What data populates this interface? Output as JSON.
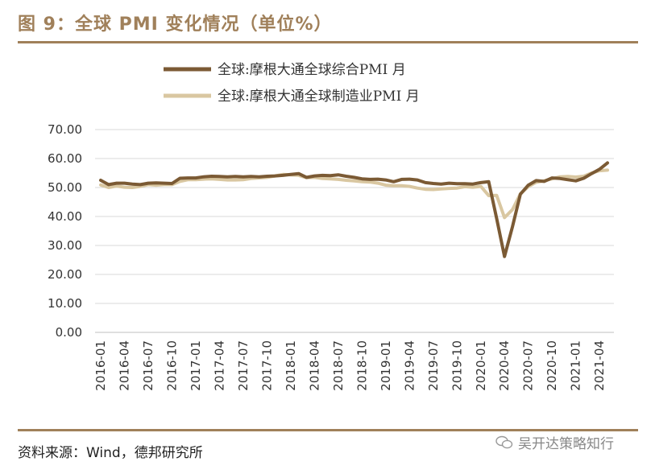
{
  "header": {
    "title": "图 9：全球 PMI 变化情况（单位%）"
  },
  "footer": {
    "source": "资料来源：Wind，德邦研究所",
    "watermark": "吴开达策略知行"
  },
  "colors": {
    "accent": "#a0805a",
    "series1": "#7b5a34",
    "series2": "#d9c7a1",
    "grid": "#d9d9d9"
  },
  "chart_data": {
    "type": "line",
    "legend_position": "top-center",
    "grid": true,
    "ylim": [
      0,
      70
    ],
    "yticks": [
      "0.00",
      "10.00",
      "20.00",
      "30.00",
      "40.00",
      "50.00",
      "60.00",
      "70.00"
    ],
    "xticks": [
      "2016-01",
      "2016-04",
      "2016-07",
      "2016-10",
      "2017-01",
      "2017-04",
      "2017-07",
      "2017-10",
      "2018-01",
      "2018-04",
      "2018-07",
      "2018-10",
      "2019-01",
      "2019-04",
      "2019-07",
      "2019-10",
      "2020-01",
      "2020-04",
      "2020-07",
      "2020-10",
      "2021-01",
      "2021-04"
    ],
    "x": [
      "2016-01",
      "2016-02",
      "2016-03",
      "2016-04",
      "2016-05",
      "2016-06",
      "2016-07",
      "2016-08",
      "2016-09",
      "2016-10",
      "2016-11",
      "2016-12",
      "2017-01",
      "2017-02",
      "2017-03",
      "2017-04",
      "2017-05",
      "2017-06",
      "2017-07",
      "2017-08",
      "2017-09",
      "2017-10",
      "2017-11",
      "2017-12",
      "2018-01",
      "2018-02",
      "2018-03",
      "2018-04",
      "2018-05",
      "2018-06",
      "2018-07",
      "2018-08",
      "2018-09",
      "2018-10",
      "2018-11",
      "2018-12",
      "2019-01",
      "2019-02",
      "2019-03",
      "2019-04",
      "2019-05",
      "2019-06",
      "2019-07",
      "2019-08",
      "2019-09",
      "2019-10",
      "2019-11",
      "2019-12",
      "2020-01",
      "2020-02",
      "2020-03",
      "2020-04",
      "2020-05",
      "2020-06",
      "2020-07",
      "2020-08",
      "2020-09",
      "2020-10",
      "2020-11",
      "2020-12",
      "2021-01",
      "2021-02",
      "2021-03",
      "2021-04",
      "2021-05"
    ],
    "series": [
      {
        "name": "全球:摩根大通全球综合PMI 月",
        "values": [
          52.5,
          51.0,
          51.5,
          51.5,
          51.2,
          51.0,
          51.5,
          51.6,
          51.5,
          51.4,
          53.2,
          53.3,
          53.3,
          53.7,
          53.9,
          53.8,
          53.7,
          53.8,
          53.7,
          53.8,
          53.7,
          53.9,
          54.0,
          54.2,
          54.5,
          54.8,
          53.5,
          54.0,
          54.2,
          54.1,
          54.4,
          53.9,
          53.5,
          53.0,
          52.8,
          52.9,
          52.6,
          52.0,
          52.8,
          52.9,
          52.6,
          51.7,
          51.4,
          51.2,
          51.5,
          51.3,
          51.3,
          51.2,
          51.7,
          52.0,
          39.4,
          26.2,
          36.5,
          47.7,
          50.8,
          52.4,
          52.1,
          53.3,
          53.1,
          52.7,
          52.3,
          53.2,
          54.8,
          56.3,
          58.5
        ]
      },
      {
        "name": "全球:摩根大通全球制造业PMI 月",
        "values": [
          50.9,
          50.0,
          50.5,
          50.1,
          50.0,
          50.4,
          51.0,
          50.8,
          51.0,
          51.0,
          52.1,
          52.7,
          52.7,
          52.9,
          53.0,
          52.8,
          52.6,
          52.6,
          52.7,
          53.1,
          53.3,
          53.5,
          54.0,
          54.5,
          54.4,
          54.2,
          53.4,
          53.5,
          53.1,
          53.0,
          52.8,
          52.5,
          52.3,
          52.0,
          51.9,
          51.5,
          50.8,
          50.6,
          50.6,
          50.4,
          49.8,
          49.4,
          49.3,
          49.5,
          49.7,
          49.8,
          50.3,
          50.1,
          50.4,
          47.2,
          47.3,
          39.6,
          42.4,
          47.8,
          50.3,
          51.8,
          52.3,
          53.0,
          53.7,
          53.8,
          53.6,
          53.9,
          55.0,
          55.8,
          56.0
        ]
      }
    ]
  }
}
